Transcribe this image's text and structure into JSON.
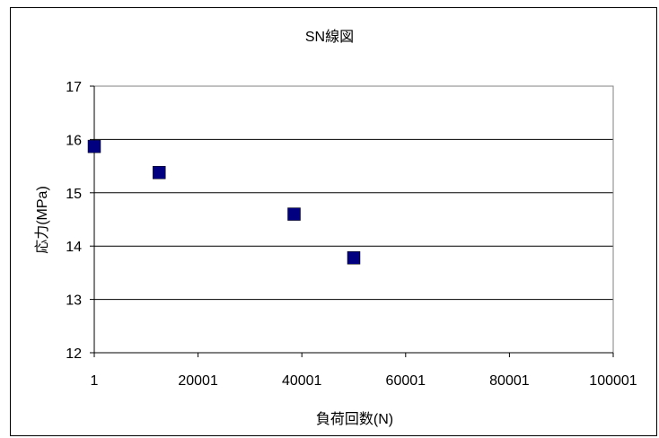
{
  "chart_data": {
    "type": "scatter",
    "title": "SN線図",
    "xlabel": "負荷回数(N)",
    "ylabel": "応力(MPa)",
    "xlim": [
      1,
      100001
    ],
    "ylim": [
      12,
      17
    ],
    "x_ticks": [
      1,
      20001,
      40001,
      60001,
      80001,
      100001
    ],
    "y_ticks": [
      12,
      13,
      14,
      15,
      16,
      17
    ],
    "x_tick_labels": [
      "1",
      "20001",
      "40001",
      "60001",
      "80001",
      "100001"
    ],
    "y_tick_labels": [
      "12",
      "13",
      "14",
      "15",
      "16",
      "17"
    ],
    "grid": "horizontal",
    "legend": "none",
    "series": [
      {
        "marker": "square",
        "color": "#000080",
        "points": [
          {
            "x": 1,
            "y": 15.87
          },
          {
            "x": 12500,
            "y": 15.38
          },
          {
            "x": 38500,
            "y": 14.6
          },
          {
            "x": 50000,
            "y": 13.78
          }
        ]
      }
    ]
  }
}
